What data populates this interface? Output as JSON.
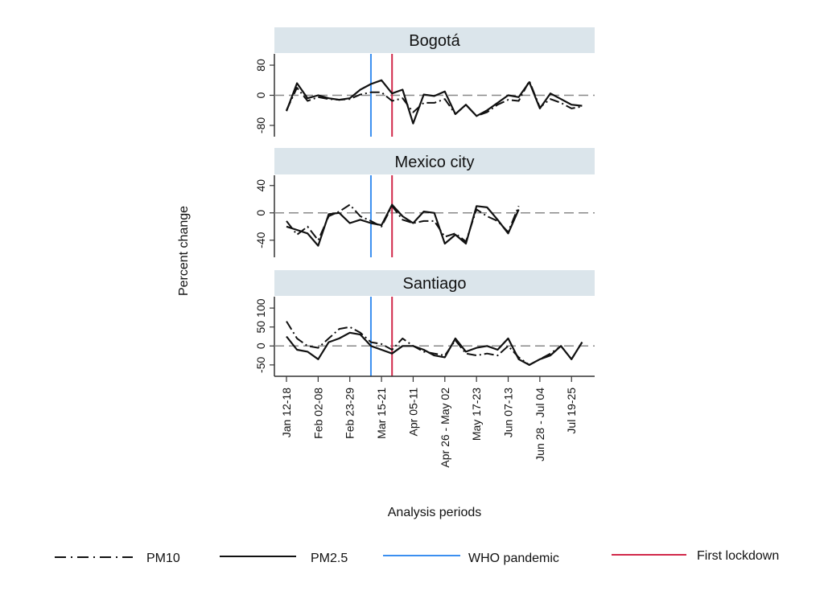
{
  "chart_data": {
    "type": "line",
    "ylabel": "Percent change",
    "xlabel": "Analysis periods",
    "x_tick_labels": [
      "Jan 12-18",
      "Feb 02-08",
      "Feb 23-29",
      "Mar 15-21",
      "Apr 05-11",
      "Apr 26 - May 02",
      "May 17-23",
      "Jun 07-13",
      "Jun 28 - Jul 04",
      "Jul 19-25"
    ],
    "x_tick_week_index": [
      0,
      3,
      6,
      9,
      12,
      15,
      18,
      21,
      24,
      27
    ],
    "week_count": 29,
    "events": [
      {
        "name": "WHO pandemic",
        "week_index": 8,
        "color": "#3b8ff0"
      },
      {
        "name": "First lockdown",
        "week_index": 10,
        "color": "#d1284a"
      }
    ],
    "legend": {
      "placement": "bottom",
      "items": [
        {
          "label": "PM10",
          "style": "dash-dot",
          "color": "#111111"
        },
        {
          "label": "PM2.5",
          "style": "solid",
          "color": "#111111"
        },
        {
          "label": "WHO pandemic",
          "style": "solid",
          "color": "#3b8ff0"
        },
        {
          "label": "First lockdown",
          "style": "solid",
          "color": "#d1284a"
        }
      ]
    },
    "panels": [
      {
        "title": "Bogotá",
        "ylim": [
          -110,
          110
        ],
        "yticks": [
          -80,
          0,
          80
        ],
        "ytick_labels": [
          "-80",
          "0",
          "80"
        ],
        "series": [
          {
            "name": "PM10",
            "values": [
              -40,
              20,
              -15,
              -5,
              -10,
              -12,
              -10,
              2,
              8,
              8,
              -15,
              -8,
              -45,
              -20,
              -20,
              -10,
              -50,
              -25,
              -55,
              -45,
              -25,
              -12,
              -15,
              38,
              -32,
              -10,
              -20,
              -35,
              -30
            ]
          },
          {
            "name": "PM2.5",
            "values": [
              -42,
              32,
              -8,
              0,
              -8,
              -12,
              -8,
              15,
              30,
              40,
              5,
              15,
              -75,
              2,
              -2,
              10,
              -50,
              -25,
              -55,
              -40,
              -20,
              0,
              -5,
              35,
              -35,
              5,
              -10,
              -25,
              -28
            ]
          }
        ]
      },
      {
        "title": "Mexico city",
        "ylim": [
          -65,
          55
        ],
        "yticks": [
          -40,
          0,
          40
        ],
        "ytick_labels": [
          "-40",
          "0",
          "40"
        ],
        "series": [
          {
            "name": "PM10",
            "values": [
              -12,
              -32,
              -20,
              -40,
              -5,
              2,
              12,
              -5,
              -12,
              -20,
              10,
              -10,
              -15,
              -12,
              -12,
              -35,
              -30,
              -42,
              5,
              -5,
              -12,
              -28,
              10
            ]
          },
          {
            "name": "PM2.5",
            "values": [
              -20,
              -25,
              -30,
              -48,
              -2,
              0,
              -15,
              -10,
              -15,
              -18,
              12,
              -5,
              -15,
              2,
              0,
              -45,
              -32,
              -45,
              10,
              8,
              -10,
              -30,
              5
            ]
          }
        ]
      },
      {
        "title": "Santiago",
        "ylim": [
          -80,
          130
        ],
        "yticks": [
          -50,
          0,
          50,
          100
        ],
        "ytick_labels": [
          "-50",
          "0",
          "50",
          "100"
        ],
        "series": [
          {
            "name": "PM10",
            "values": [
              65,
              20,
              0,
              -5,
              20,
              45,
              50,
              35,
              10,
              5,
              -10,
              20,
              0,
              -15,
              -20,
              -25,
              15,
              -20,
              -25,
              -20,
              -25,
              0,
              -30,
              -50,
              -35,
              -20,
              0,
              -35,
              10
            ]
          },
          {
            "name": "PM2.5",
            "values": [
              25,
              -10,
              -15,
              -35,
              10,
              20,
              35,
              30,
              0,
              -10,
              -20,
              0,
              0,
              -10,
              -25,
              -30,
              20,
              -15,
              -5,
              0,
              -10,
              20,
              -35,
              -50,
              -35,
              -25,
              0,
              -35,
              10
            ]
          }
        ]
      }
    ]
  }
}
